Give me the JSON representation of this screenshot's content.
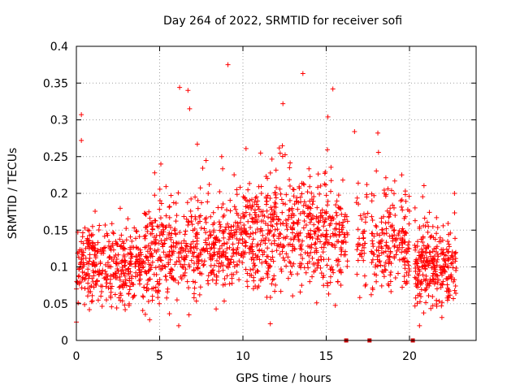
{
  "chart_data": {
    "type": "scatter",
    "title": "Day 264 of 2022, SRMTID for receiver sofi",
    "xlabel": "GPS time / hours",
    "ylabel": "SRMTID / TECUs",
    "xlim": [
      0,
      24
    ],
    "ylim": [
      0,
      0.4
    ],
    "x_ticks": [
      0,
      5,
      10,
      15,
      20
    ],
    "y_ticks": [
      0,
      0.05,
      0.1,
      0.15,
      0.2,
      0.25,
      0.3,
      0.35,
      0.4
    ],
    "x_tick_labels": [
      "0",
      "5",
      "10",
      "15",
      "20"
    ],
    "y_tick_labels": [
      "0",
      "0.05",
      "0.1",
      "0.15",
      "0.2",
      "0.25",
      "0.3",
      "0.35",
      "0.4"
    ],
    "grid": true,
    "marker": "plus",
    "color": "#ff0000",
    "gap_markers_x": [
      16.2,
      17.6,
      20.2
    ],
    "notable_points": [
      {
        "x": 0.3,
        "y": 0.307
      },
      {
        "x": 0.3,
        "y": 0.272
      },
      {
        "x": 6.2,
        "y": 0.344
      },
      {
        "x": 6.7,
        "y": 0.34
      },
      {
        "x": 6.8,
        "y": 0.315
      },
      {
        "x": 9.1,
        "y": 0.375
      },
      {
        "x": 12.4,
        "y": 0.322
      },
      {
        "x": 13.6,
        "y": 0.363
      },
      {
        "x": 15.4,
        "y": 0.342
      },
      {
        "x": 15.1,
        "y": 0.304
      },
      {
        "x": 16.7,
        "y": 0.284
      },
      {
        "x": 18.1,
        "y": 0.282
      },
      {
        "x": 0.0,
        "y": 0.025
      },
      {
        "x": 4.4,
        "y": 0.028
      },
      {
        "x": 20.6,
        "y": 0.02
      }
    ],
    "series": [
      {
        "segments": [
          {
            "x_start": 0.0,
            "x_end": 4.0,
            "center": 0.1,
            "spread": 0.045,
            "density": 90
          },
          {
            "x_start": 4.0,
            "x_end": 7.5,
            "center": 0.12,
            "spread": 0.06,
            "density": 90
          },
          {
            "x_start": 7.5,
            "x_end": 10.0,
            "center": 0.13,
            "spread": 0.055,
            "density": 85
          },
          {
            "x_start": 10.0,
            "x_end": 14.0,
            "center": 0.145,
            "spread": 0.07,
            "density": 95
          },
          {
            "x_start": 14.0,
            "x_end": 16.3,
            "center": 0.14,
            "spread": 0.06,
            "density": 90
          },
          {
            "x_start": 16.8,
            "x_end": 17.5,
            "center": 0.14,
            "spread": 0.06,
            "density": 60
          },
          {
            "x_start": 17.7,
            "x_end": 20.0,
            "center": 0.13,
            "spread": 0.06,
            "density": 85
          },
          {
            "x_start": 20.3,
            "x_end": 22.8,
            "center": 0.1,
            "spread": 0.045,
            "density": 110
          }
        ]
      }
    ]
  }
}
